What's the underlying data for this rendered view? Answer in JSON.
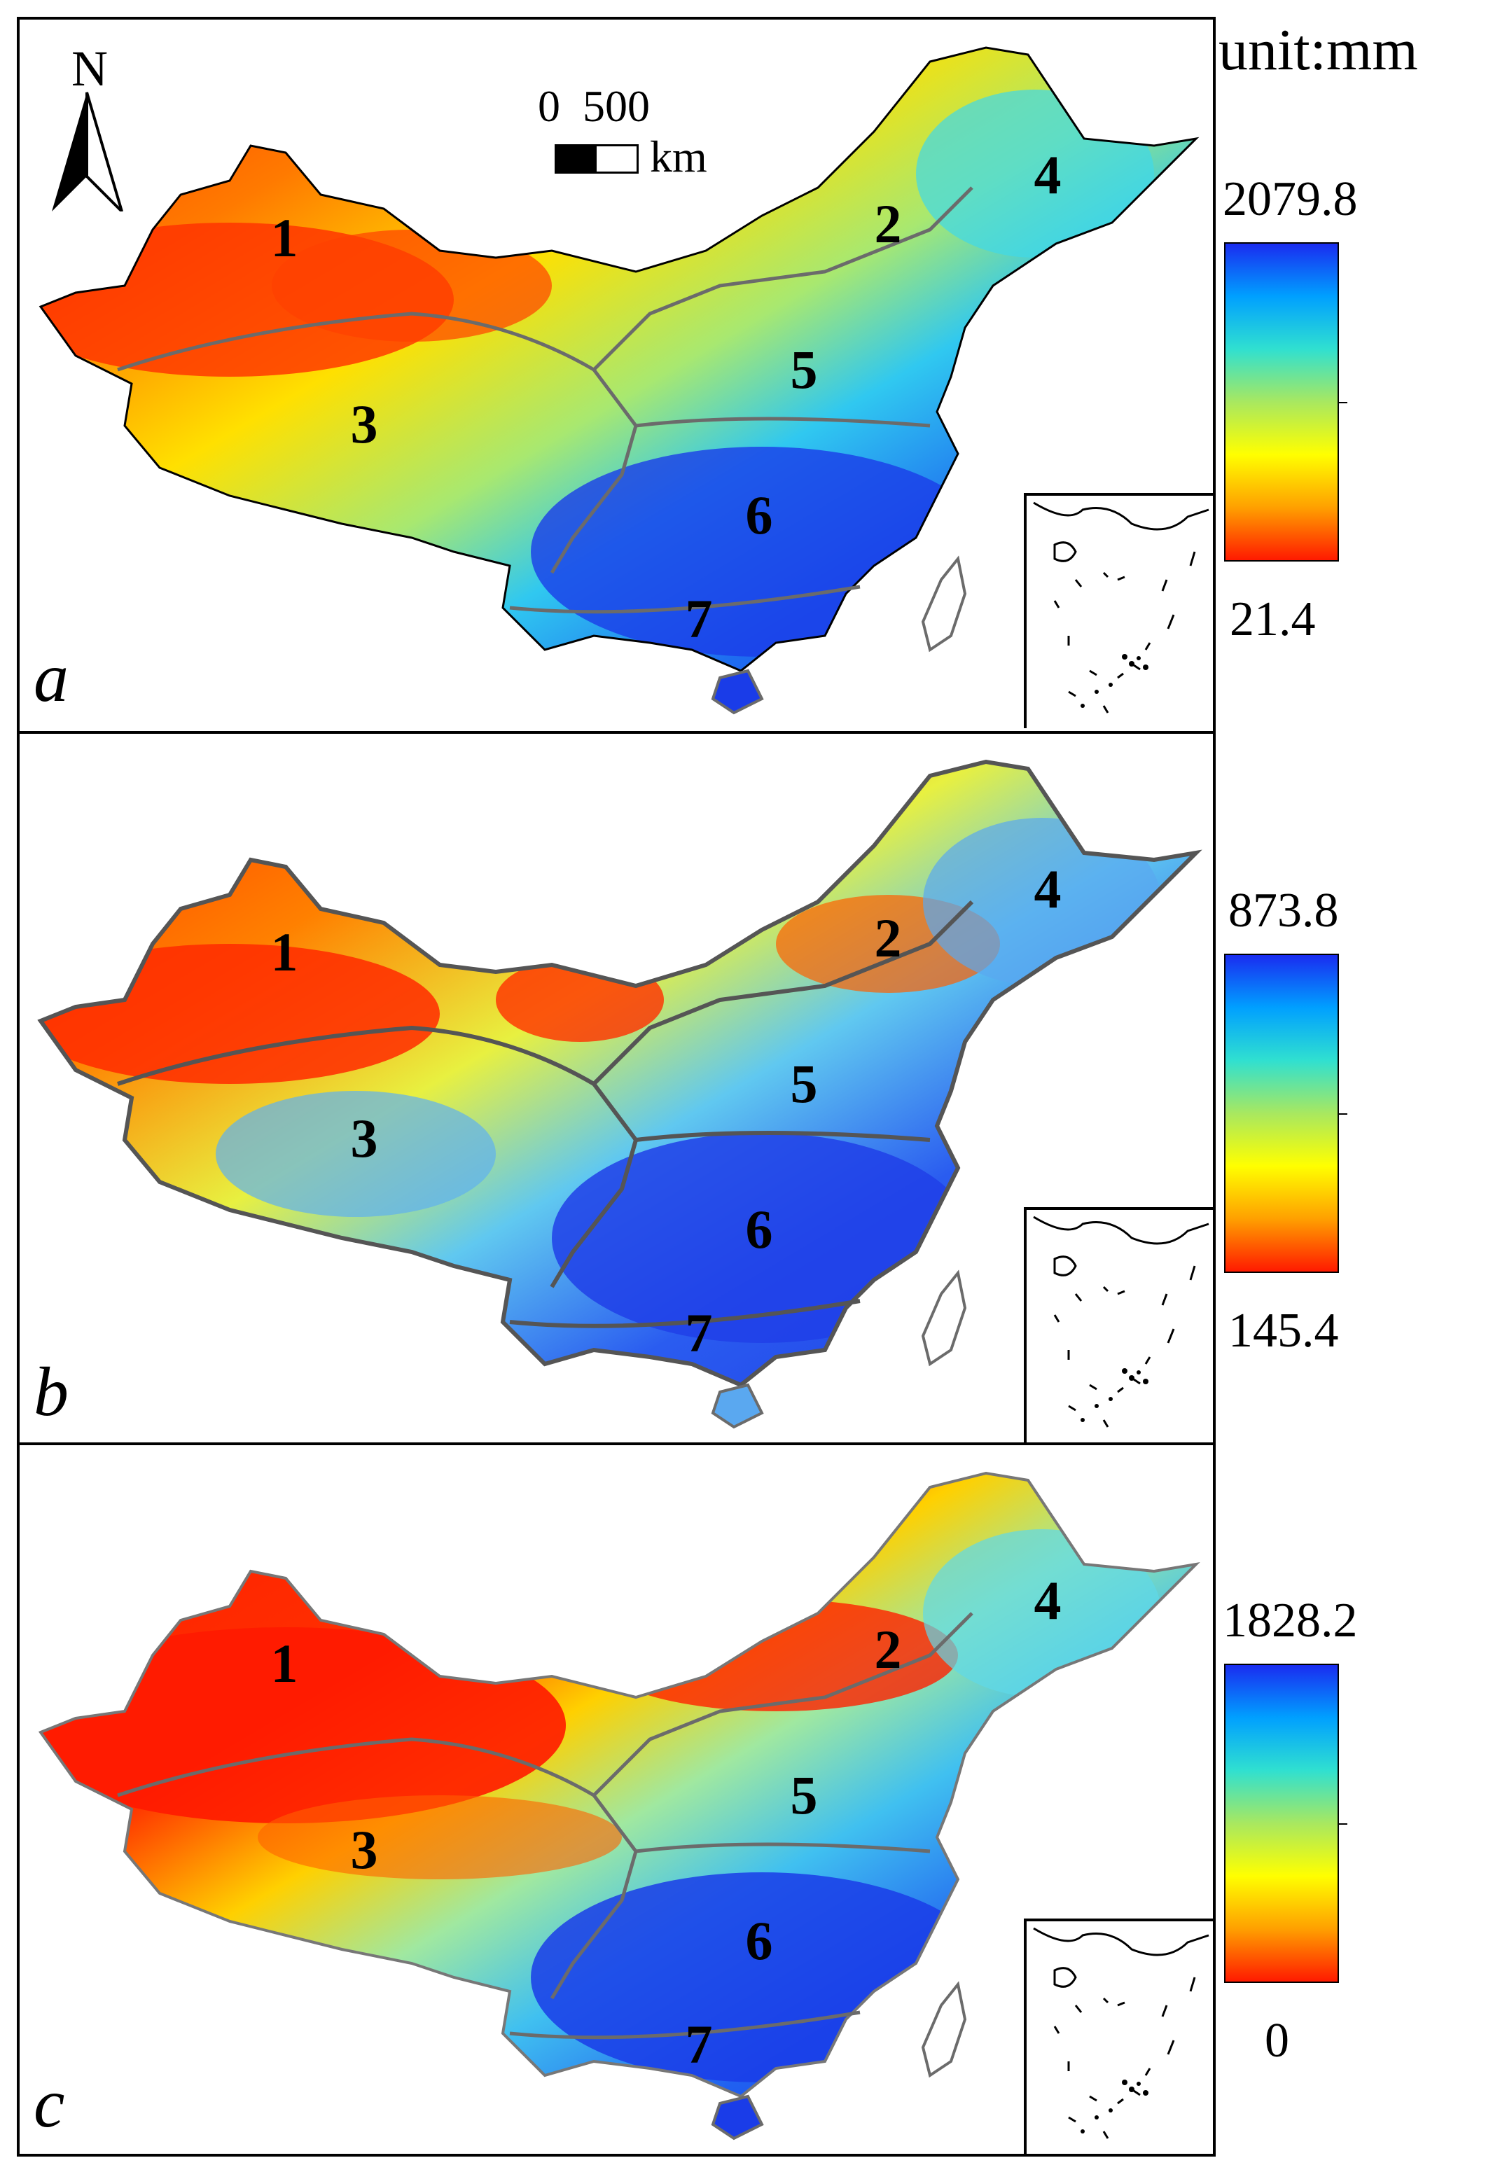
{
  "legend": {
    "unit": "unit:mm"
  },
  "north_arrow": {
    "label": "N"
  },
  "scale_bar": {
    "zero": "0",
    "distance": "500",
    "unit": "km"
  },
  "region_labels": [
    "1",
    "2",
    "3",
    "4",
    "5",
    "6",
    "7"
  ],
  "panels": [
    {
      "letter": "a",
      "colorbar": {
        "max": "2079.8",
        "min": "21.4",
        "colors_top_to_bottom": [
          "#1a2cf0",
          "#00a0ff",
          "#30e0d0",
          "#a8e860",
          "#ffff00",
          "#ffa000",
          "#ff1a00"
        ]
      }
    },
    {
      "letter": "b",
      "colorbar": {
        "max": "873.8",
        "min": "145.4",
        "colors_top_to_bottom": [
          "#1a2cf0",
          "#00a0ff",
          "#30e0d0",
          "#a8e860",
          "#ffff00",
          "#ffa000",
          "#ff1a00"
        ]
      }
    },
    {
      "letter": "c",
      "colorbar": {
        "max": "1828.2",
        "min": "0",
        "colors_top_to_bottom": [
          "#1a2cf0",
          "#00a0ff",
          "#30e0d0",
          "#a8e860",
          "#ffff00",
          "#ffa000",
          "#ff1a00"
        ]
      }
    }
  ],
  "colors": {
    "dry": "#ff2a00",
    "wet": "#1a2cf0",
    "border": "#000000",
    "region_line": "#6b6b6b"
  }
}
